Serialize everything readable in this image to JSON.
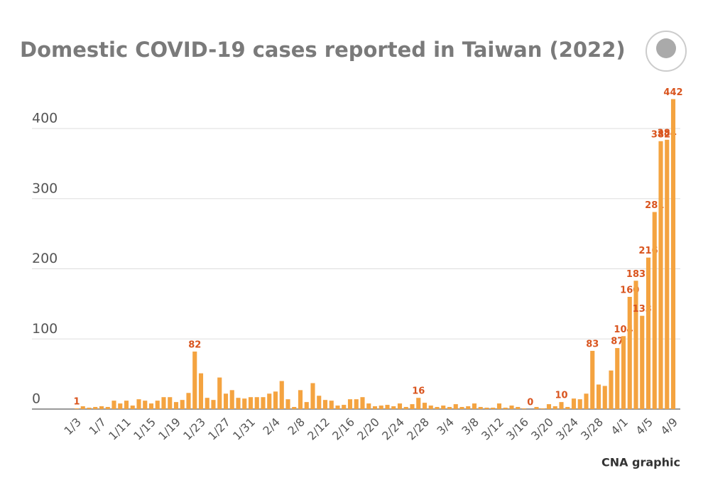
{
  "chart_data": {
    "type": "bar",
    "title": "Domestic COVID-19 cases reported in Taiwan (2022)",
    "source": "CNA graphic",
    "categories": [
      "1/3",
      null,
      null,
      null,
      "1/7",
      null,
      null,
      null,
      "1/11",
      null,
      null,
      null,
      "1/15",
      null,
      null,
      null,
      "1/19",
      null,
      null,
      null,
      "1/23",
      null,
      null,
      null,
      "1/27",
      null,
      null,
      null,
      "1/31",
      null,
      null,
      null,
      "2/4",
      null,
      null,
      null,
      "2/8",
      null,
      null,
      null,
      "2/12",
      null,
      null,
      null,
      "2/16",
      null,
      null,
      null,
      "2/20",
      null,
      null,
      null,
      "2/24",
      null,
      null,
      null,
      "2/28",
      null,
      null,
      null,
      "3/4",
      null,
      null,
      null,
      "3/8",
      null,
      null,
      null,
      "3/12",
      null,
      null,
      null,
      "3/16",
      null,
      null,
      null,
      "3/20",
      null,
      null,
      null,
      "3/24",
      null,
      null,
      null,
      "3/28",
      null,
      null,
      null,
      "4/1",
      null,
      null,
      null,
      "4/5",
      null,
      null,
      null,
      "4/9"
    ],
    "values": [
      1,
      4,
      2,
      3,
      4,
      3,
      12,
      8,
      12,
      5,
      14,
      12,
      8,
      12,
      17,
      17,
      10,
      13,
      23,
      82,
      51,
      16,
      13,
      45,
      22,
      27,
      16,
      15,
      17,
      17,
      17,
      22,
      25,
      40,
      14,
      3,
      27,
      10,
      37,
      19,
      13,
      12,
      5,
      6,
      14,
      14,
      17,
      8,
      4,
      5,
      6,
      4,
      8,
      3,
      7,
      16,
      9,
      5,
      3,
      5,
      3,
      7,
      3,
      4,
      8,
      3,
      2,
      2,
      8,
      2,
      5,
      3,
      1,
      0,
      3,
      1,
      7,
      4,
      10,
      3,
      15,
      14,
      22,
      83,
      35,
      33,
      55,
      87,
      104,
      160,
      183,
      133,
      216,
      281,
      382,
      384,
      442
    ],
    "labeled_indices": [
      0,
      19,
      55,
      73,
      78,
      83,
      87,
      88,
      89,
      90,
      91,
      92,
      93,
      94,
      95,
      96
    ],
    "color": "#f4a340",
    "label_color": "#d9541e",
    "ylim": [
      0,
      450
    ],
    "yticks": [
      0,
      100,
      200,
      300,
      400
    ],
    "grid": true
  }
}
